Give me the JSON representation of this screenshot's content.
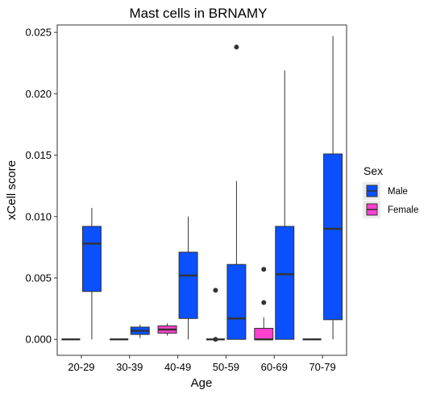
{
  "chart_data": {
    "type": "boxplot",
    "title": "Mast cells in BRNAMY",
    "xlabel": "Age",
    "ylabel": "xCell score",
    "categories": [
      "20-29",
      "30-39",
      "40-49",
      "50-59",
      "60-69",
      "70-79"
    ],
    "ylim": [
      -0.0013,
      0.0256
    ],
    "yticks": [
      0.0,
      0.005,
      0.01,
      0.015,
      0.02,
      0.025
    ],
    "ytick_labels": [
      "0.000",
      "0.005",
      "0.010",
      "0.015",
      "0.020",
      "0.025"
    ],
    "grid": false,
    "legend": {
      "title": "Sex",
      "position": "right",
      "entries": [
        "Male",
        "Female"
      ]
    },
    "series": [
      {
        "name": "Male",
        "color": "#0A50FF",
        "boxes": [
          {
            "category": "20-29",
            "min": 0.0,
            "q1": 0.0039,
            "median": 0.0078,
            "q3": 0.0092,
            "max": 0.0107,
            "outliers": []
          },
          {
            "category": "30-39",
            "min": 0.0001,
            "q1": 0.0004,
            "median": 0.0007,
            "q3": 0.001,
            "max": 0.0012,
            "outliers": []
          },
          {
            "category": "40-49",
            "min": 0.0,
            "q1": 0.0017,
            "median": 0.0052,
            "q3": 0.0071,
            "max": 0.01,
            "outliers": []
          },
          {
            "category": "50-59",
            "min": 0.0,
            "q1": 0.0,
            "median": 0.0017,
            "q3": 0.0061,
            "max": 0.0129,
            "outliers": [
              0.0238
            ]
          },
          {
            "category": "60-69",
            "min": 0.0,
            "q1": 0.0,
            "median": 0.0053,
            "q3": 0.0092,
            "max": 0.0219,
            "outliers": []
          },
          {
            "category": "70-79",
            "min": 0.0,
            "q1": 0.0016,
            "median": 0.009,
            "q3": 0.0151,
            "max": 0.0247,
            "outliers": []
          }
        ]
      },
      {
        "name": "Female",
        "color": "#FF40D0",
        "boxes": [
          {
            "category": "20-29",
            "min": 0.0,
            "q1": 0.0,
            "median": 0.0,
            "q3": 0.0,
            "max": 0.0,
            "outliers": []
          },
          {
            "category": "30-39",
            "min": 0.0,
            "q1": 0.0,
            "median": 0.0,
            "q3": 0.0,
            "max": 0.0,
            "outliers": []
          },
          {
            "category": "40-49",
            "min": 0.0003,
            "q1": 0.0005,
            "median": 0.0008,
            "q3": 0.0011,
            "max": 0.0013,
            "outliers": []
          },
          {
            "category": "50-59",
            "min": 0.0,
            "q1": 0.0,
            "median": 0.0,
            "q3": 0.0,
            "max": 0.0,
            "outliers": [
              0.004,
              0.0
            ]
          },
          {
            "category": "60-69",
            "min": 0.0,
            "q1": 0.0,
            "median": 0.0,
            "q3": 0.0009,
            "max": 0.0018,
            "outliers": [
              0.0057,
              0.003
            ]
          },
          {
            "category": "70-79",
            "min": 0.0,
            "q1": 0.0,
            "median": 0.0,
            "q3": 0.0,
            "max": 0.0,
            "outliers": []
          }
        ]
      }
    ]
  }
}
